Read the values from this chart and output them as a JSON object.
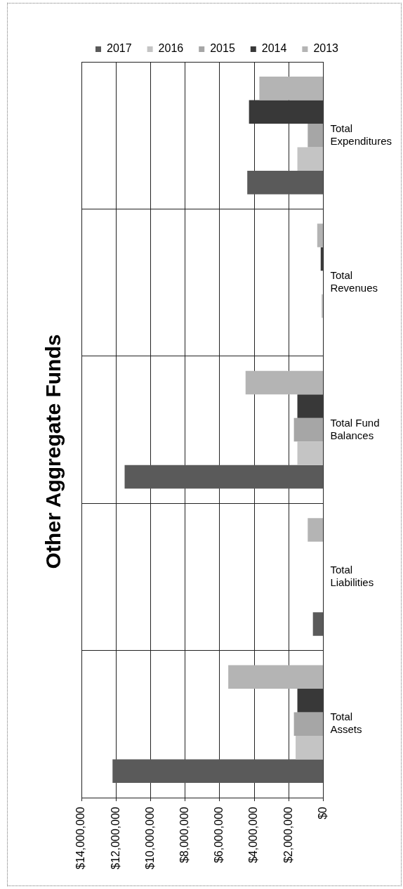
{
  "chart_data": {
    "type": "bar",
    "orientation": "horizontal",
    "title": "Other Aggregate Funds",
    "categories": [
      "Total Expenditures",
      "Total Revenues",
      "Total Fund Balances",
      "Total Liabilities",
      "Total Assets"
    ],
    "series": [
      {
        "name": "2017",
        "color": "#5a5a5a",
        "values": [
          4400000,
          0,
          11500000,
          600000,
          12200000
        ]
      },
      {
        "name": "2016",
        "color": "#c4c4c4",
        "values": [
          1500000,
          100000,
          1500000,
          0,
          1600000
        ]
      },
      {
        "name": "2015",
        "color": "#a6a6a6",
        "values": [
          900000,
          0,
          1700000,
          0,
          1700000
        ]
      },
      {
        "name": "2014",
        "color": "#383838",
        "values": [
          4300000,
          150000,
          1500000,
          0,
          1500000
        ]
      },
      {
        "name": "2013",
        "color": "#b4b4b4",
        "values": [
          3700000,
          350000,
          4500000,
          900000,
          5500000
        ]
      }
    ],
    "xlim": [
      14000000,
      0
    ],
    "xticks": [
      {
        "value": 0,
        "label": "$0"
      },
      {
        "value": 2000000,
        "label": "$2,000,000"
      },
      {
        "value": 4000000,
        "label": "$4,000,000"
      },
      {
        "value": 6000000,
        "label": "$6,000,000"
      },
      {
        "value": 8000000,
        "label": "$8,000,000"
      },
      {
        "value": 10000000,
        "label": "$10,000,000"
      },
      {
        "value": 12000000,
        "label": "$12,000,000"
      },
      {
        "value": 14000000,
        "label": "$14,000,000"
      }
    ],
    "grid": true,
    "legend": "top"
  }
}
